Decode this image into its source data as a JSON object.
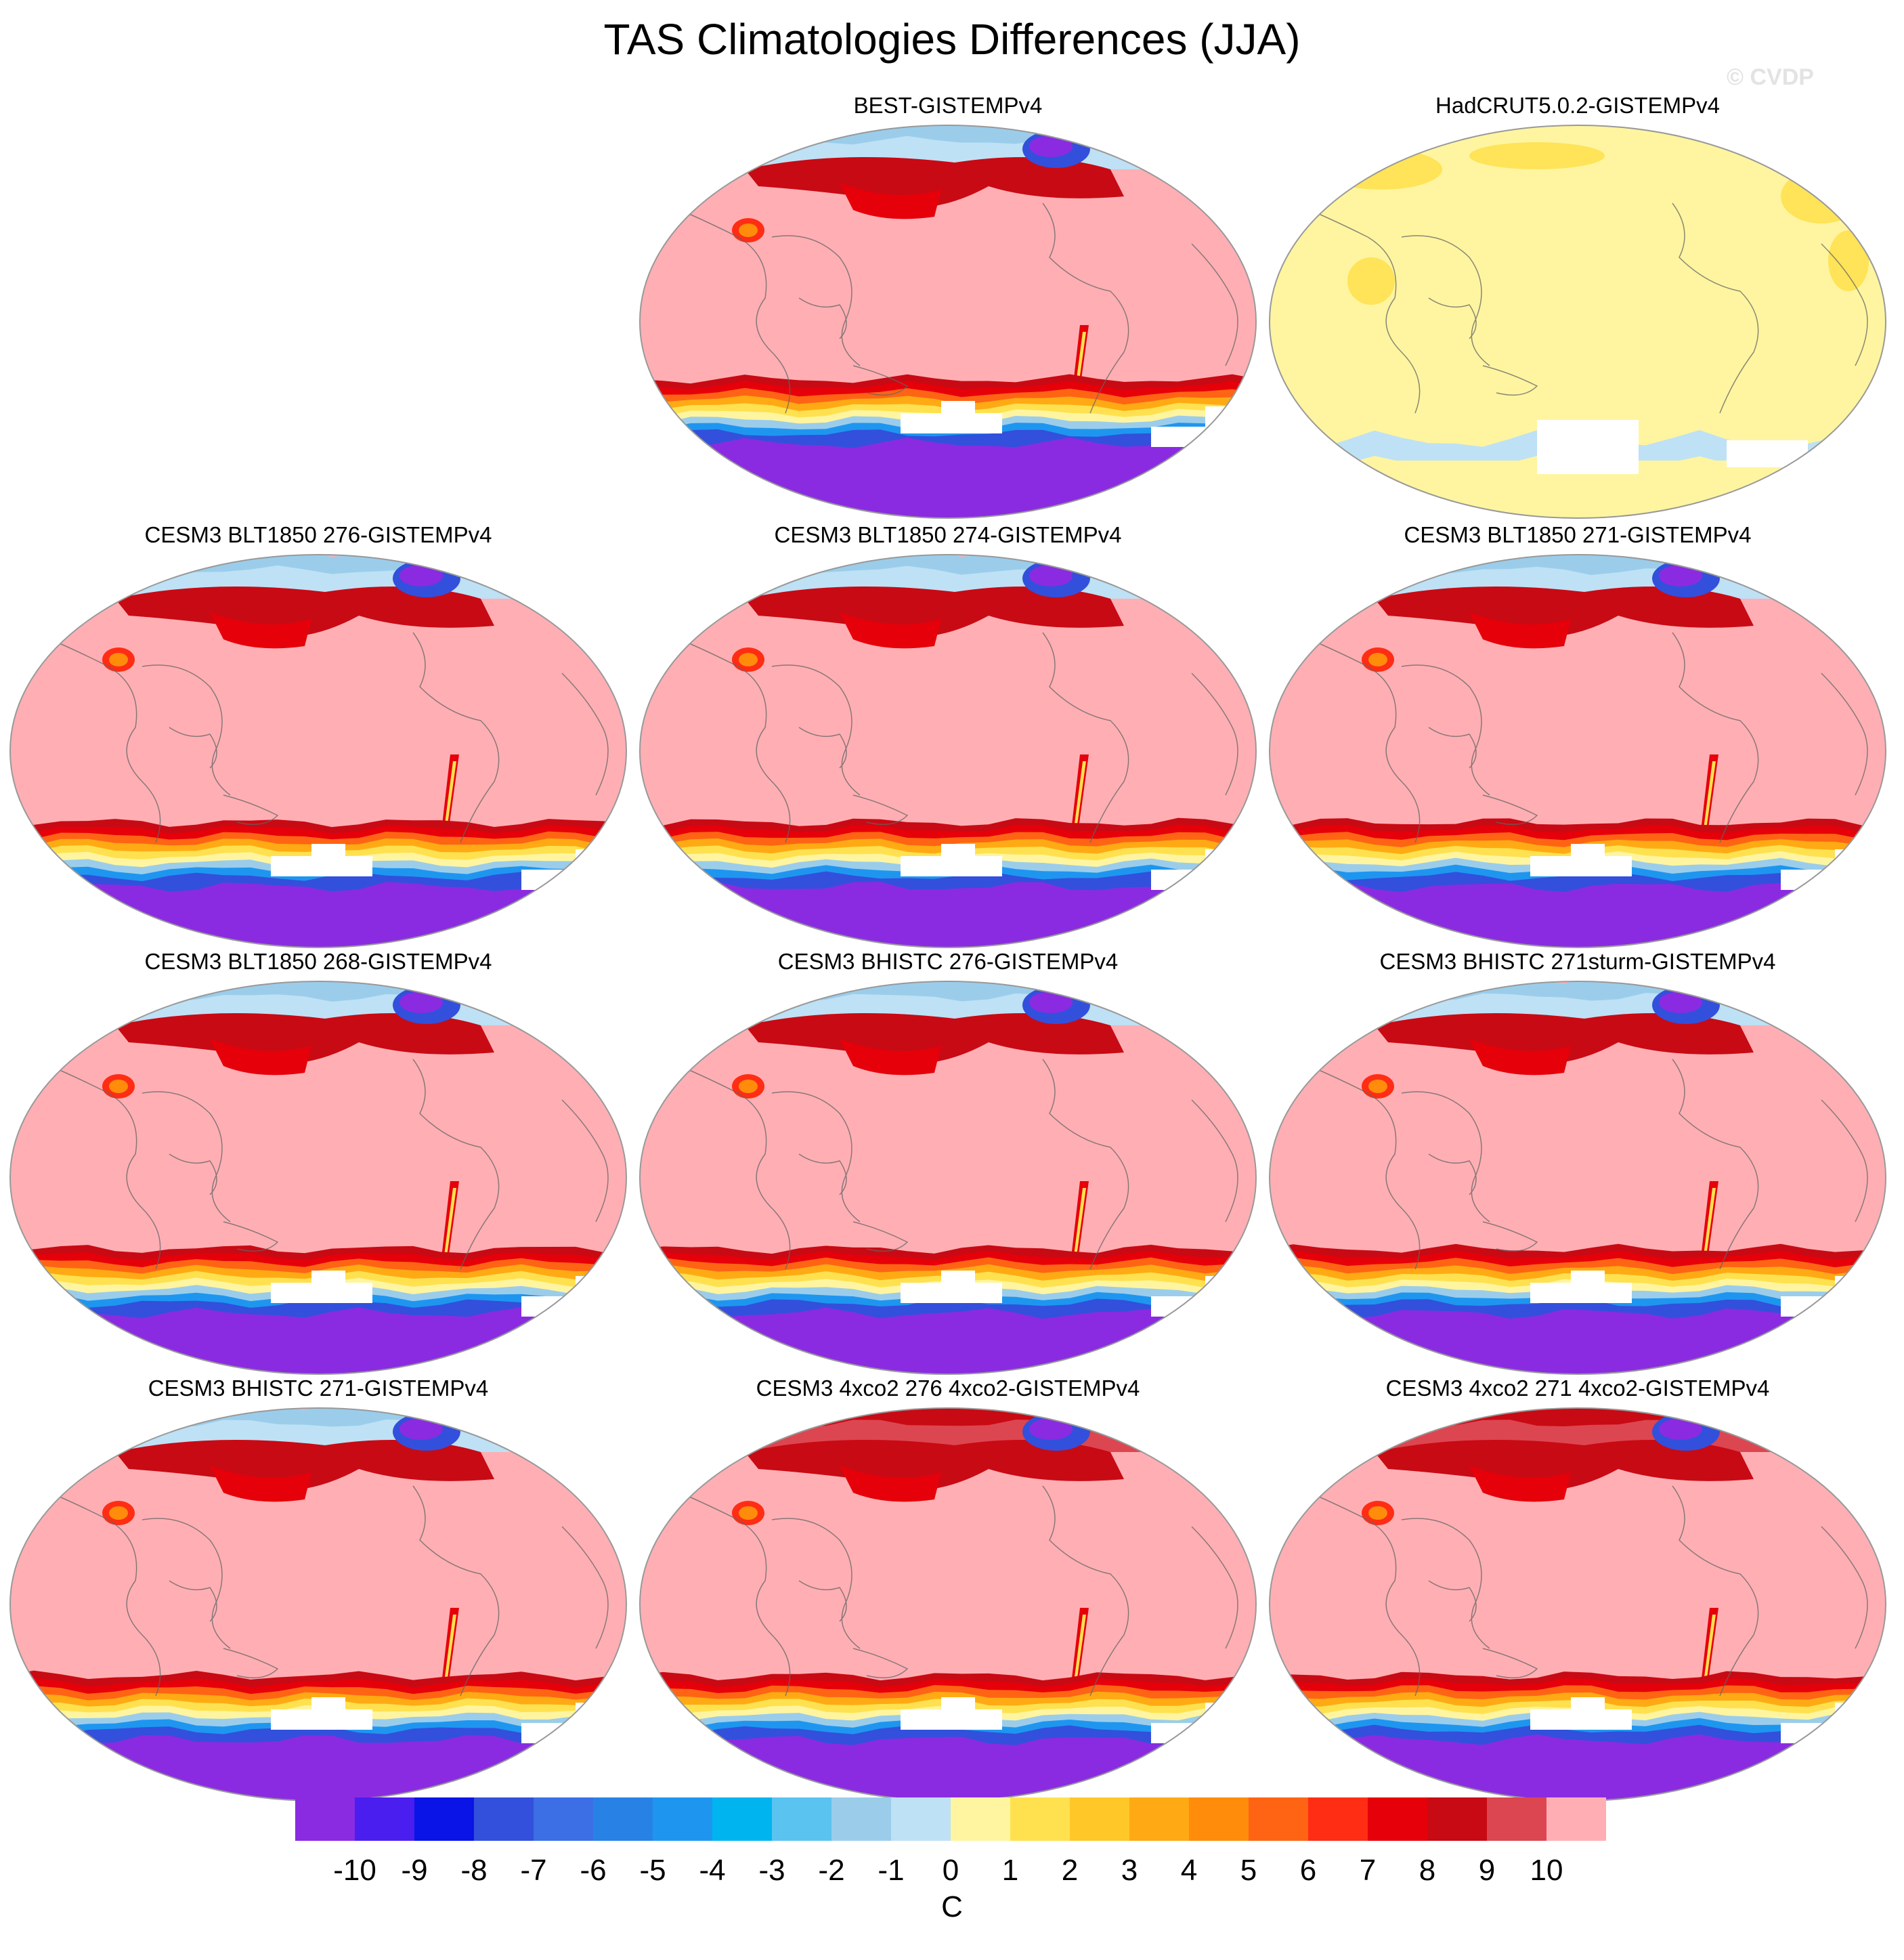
{
  "title": "TAS Climatologies Differences (JJA)",
  "watermark": "© CVDP",
  "panels": [
    {
      "label": "BEST-GISTEMPv4",
      "style": "best"
    },
    {
      "label": "HadCRUT5.0.2-GISTEMPv4",
      "style": "hadcrut"
    },
    {
      "label": "CESM3 BLT1850 276-GISTEMPv4",
      "style": "model"
    },
    {
      "label": "CESM3 BLT1850 274-GISTEMPv4",
      "style": "model"
    },
    {
      "label": "CESM3 BLT1850 271-GISTEMPv4",
      "style": "model"
    },
    {
      "label": "CESM3 BLT1850 268-GISTEMPv4",
      "style": "model"
    },
    {
      "label": "CESM3 BHISTC 276-GISTEMPv4",
      "style": "model"
    },
    {
      "label": "CESM3 BHISTC 271sturm-GISTEMPv4",
      "style": "model"
    },
    {
      "label": "CESM3 BHISTC 271-GISTEMPv4",
      "style": "model"
    },
    {
      "label": "CESM3 4xco2 276 4xco2-GISTEMPv4",
      "style": "co2"
    },
    {
      "label": "CESM3 4xco2 271 4xco2-GISTEMPv4",
      "style": "co2"
    }
  ],
  "colorbar": {
    "unit": "C",
    "labels": [
      "-10",
      "-9",
      "-8",
      "-7",
      "-6",
      "-5",
      "-4",
      "-3",
      "-2",
      "-1",
      "0",
      "1",
      "2",
      "3",
      "4",
      "5",
      "6",
      "7",
      "8",
      "9",
      "10"
    ],
    "colors": [
      "#8a2be2",
      "#4b1ef0",
      "#0a14e6",
      "#3250dc",
      "#3c6ee6",
      "#2882e6",
      "#1e96f0",
      "#00b4f0",
      "#5ac3f0",
      "#9bcdeb",
      "#bee1f5",
      "#fff5a0",
      "#ffe150",
      "#ffc828",
      "#ffaa14",
      "#ff8c0a",
      "#ff6414",
      "#ff2d14",
      "#e6000a",
      "#c80a14",
      "#dc4650",
      "#ffafb4"
    ]
  },
  "palette": {
    "land_outline": "#646464",
    "map_border": "#999999",
    "missing": "#ffffff"
  }
}
